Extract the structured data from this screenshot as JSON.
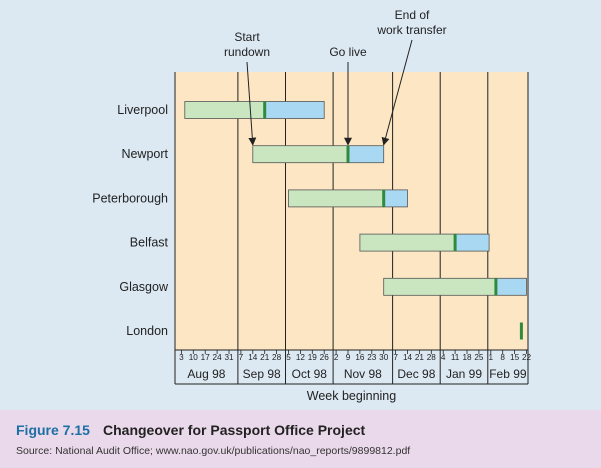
{
  "chart_data": {
    "type": "gantt",
    "x_label": "Week beginning",
    "months": [
      "Aug 98",
      "Sep 98",
      "Oct 98",
      "Nov 98",
      "Dec 98",
      "Jan 99",
      "Feb 99"
    ],
    "week_ticks": [
      {
        "month": "Aug 98",
        "days": [
          "3",
          "10",
          "17",
          "24",
          "31"
        ]
      },
      {
        "month": "Sep 98",
        "days": [
          "7",
          "14",
          "21",
          "28"
        ]
      },
      {
        "month": "Oct 98",
        "days": [
          "5",
          "12",
          "19",
          "26"
        ]
      },
      {
        "month": "Nov 98",
        "days": [
          "2",
          "9",
          "16",
          "23",
          "30"
        ]
      },
      {
        "month": "Dec 98",
        "days": [
          "7",
          "14",
          "21",
          "28"
        ]
      },
      {
        "month": "Jan 99",
        "days": [
          "4",
          "11",
          "18",
          "25"
        ]
      },
      {
        "month": "Feb 99",
        "days": [
          "1",
          "8",
          "15",
          "22"
        ]
      }
    ],
    "offices": [
      {
        "name": "Liverpool",
        "rundown_start": "1998-08-05",
        "go_live": "1998-09-21",
        "end_transfer": "1998-10-26"
      },
      {
        "name": "Newport",
        "rundown_start": "1998-09-14",
        "go_live": "1998-11-09",
        "end_transfer": "1998-11-30"
      },
      {
        "name": "Peterborough",
        "rundown_start": "1998-10-05",
        "go_live": "1998-11-30",
        "end_transfer": "1998-12-14"
      },
      {
        "name": "Belfast",
        "rundown_start": "1998-11-16",
        "go_live": "1999-01-11",
        "end_transfer": "1999-01-31"
      },
      {
        "name": "Glasgow",
        "rundown_start": "1998-11-30",
        "go_live": "1999-02-04",
        "end_transfer": "1999-02-22"
      },
      {
        "name": "London",
        "rundown_start": null,
        "go_live": "1999-02-19",
        "end_transfer": null
      }
    ],
    "annotations": [
      {
        "text": [
          "Start",
          "rundown"
        ],
        "office": "Newport",
        "event": "rundown_start"
      },
      {
        "text": [
          "Go live"
        ],
        "office": "Newport",
        "event": "go_live"
      },
      {
        "text": [
          "End of",
          "work transfer"
        ],
        "office": "Newport",
        "event": "end_transfer"
      }
    ],
    "colors": {
      "plot_background": "#fce6c4",
      "rundown_bar": "#c9e6c1",
      "transfer_bar": "#a9d9f2",
      "go_live_marker": "#2e8b3e",
      "figure_background": "#dce9f3"
    }
  },
  "caption": {
    "figure_number": "Figure 7.15",
    "title": "Changeover for Passport Office Project",
    "source": "Source: National Audit Office; www.nao.gov.uk/publications/nao_reports/9899812.pdf"
  }
}
